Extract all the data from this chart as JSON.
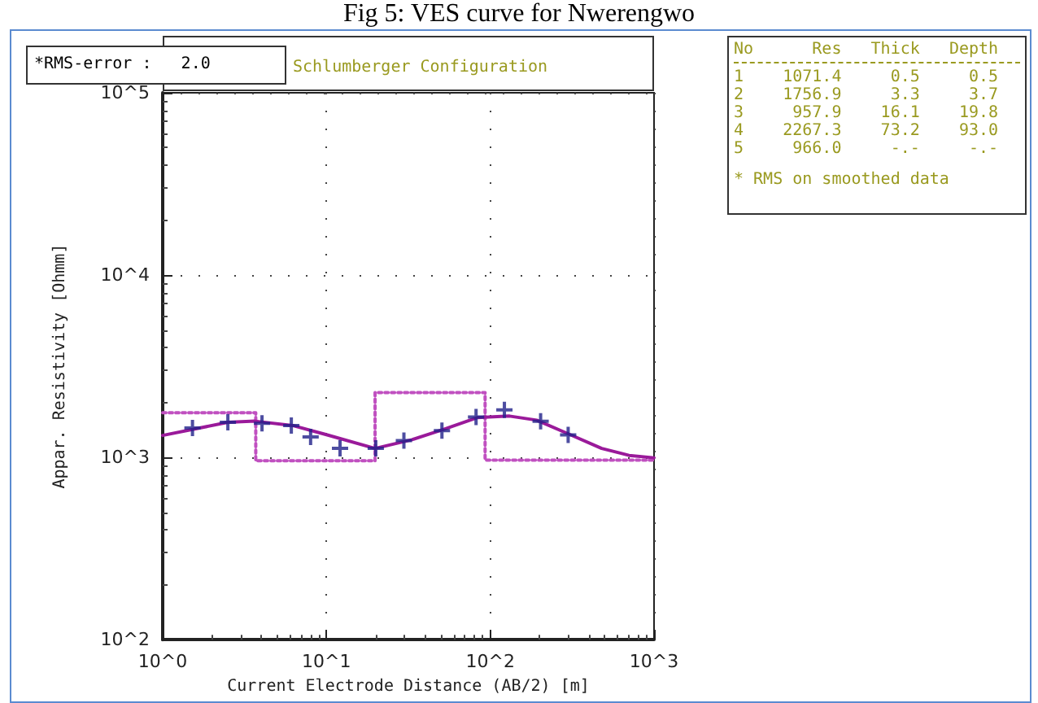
{
  "chart_data": {
    "type": "line",
    "title": "Fig 5: VES curve for Nwerengwo",
    "xlabel": "Current Electrode Distance (AB/2) [m]",
    "ylabel": "Appar. Resistivity [Ohmm]",
    "log": "xy",
    "grid": true,
    "xlim": [
      1,
      1000
    ],
    "xticks": [
      {
        "value": 1,
        "label": "10^0"
      },
      {
        "value": 10,
        "label": "10^1"
      },
      {
        "value": 100,
        "label": "10^2"
      },
      {
        "value": 1000,
        "label": "10^3"
      }
    ],
    "ylim": [
      100,
      100000
    ],
    "yticks": [
      {
        "value": 100,
        "label": "10^2"
      },
      {
        "value": 1000,
        "label": "10^3"
      },
      {
        "value": 10000,
        "label": "10^4"
      },
      {
        "value": 100000,
        "label": "10^5"
      }
    ],
    "series": [
      {
        "type": "step",
        "color": "#c050c0",
        "line_style": "dotted",
        "marker": "none",
        "x": [
          1,
          3.7,
          19.8,
          93,
          1000
        ],
        "values": [
          1756.9,
          957.9,
          2267.3,
          966,
          966
        ]
      },
      {
        "type": "line",
        "color": "#9a1a9a",
        "line_style": "solid",
        "marker": "none",
        "x": [
          1,
          2.5,
          3.66,
          6.2,
          9.8,
          19.8,
          33.3,
          52.5,
          83,
          131,
          192,
          304,
          479,
          703,
          1000
        ],
        "values": [
          1320,
          1557,
          1580,
          1496,
          1339,
          1120,
          1251,
          1430,
          1652,
          1685,
          1600,
          1339,
          1120,
          1026,
          995
        ]
      },
      {
        "type": "scatter",
        "color": "#20208a",
        "marker": "cross",
        "x": [
          1.52,
          2.5,
          4.04,
          6.1,
          8.0,
          12.1,
          20,
          29.7,
          50.7,
          81.9,
          122,
          203,
          299
        ],
        "values": [
          1449,
          1557,
          1538,
          1496,
          1295,
          1120,
          1120,
          1236,
          1402,
          1665,
          1824,
          1579,
          1328
        ]
      }
    ],
    "annotations": [
      "*RMS-error :   2.0",
      "Schlumberger Configuration",
      "No      Res   Thick   Depth",
      "1    1071.4     0.5     0.5",
      "2    1756.9     3.3     3.7",
      "3     957.9    16.1    19.8",
      "4    2267.3    73.2    93.0",
      "5     966.0     -.-     -.-",
      "* RMS on smoothed data"
    ]
  }
}
